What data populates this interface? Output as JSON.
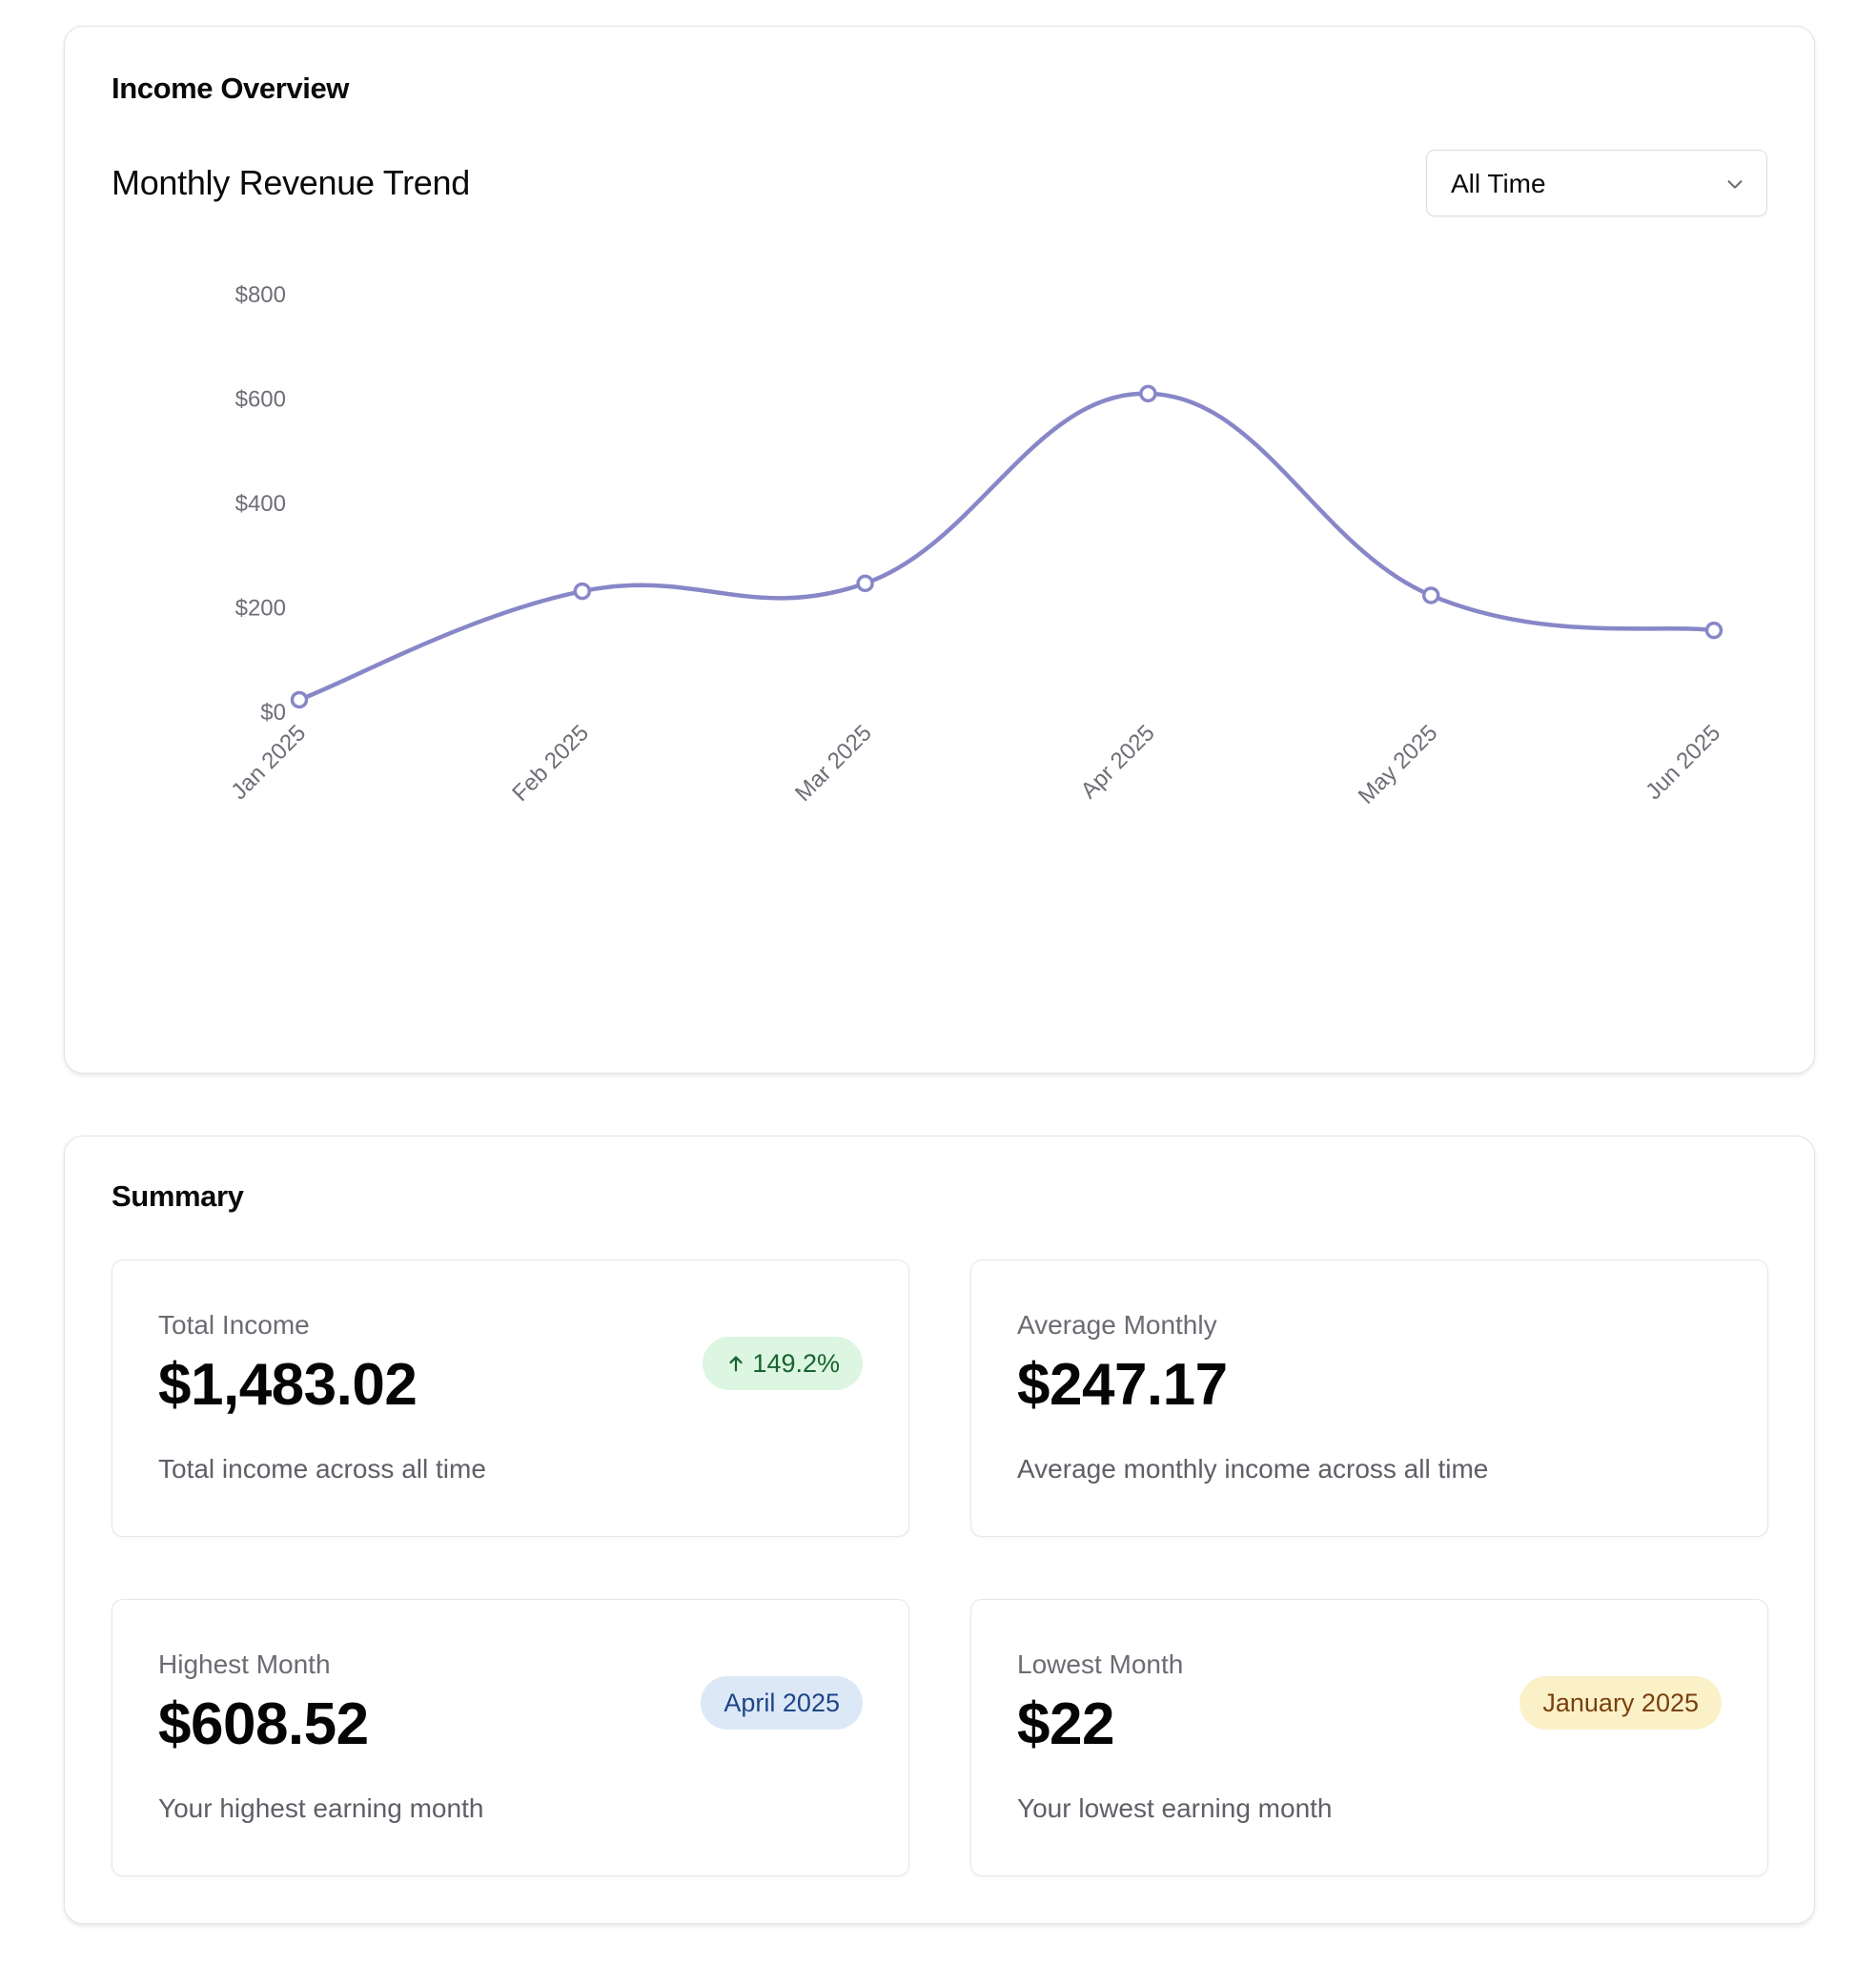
{
  "income_overview": {
    "title": "Income Overview",
    "chart_title": "Monthly Revenue Trend",
    "range_select": {
      "value": "All Time"
    }
  },
  "chart_data": {
    "type": "line",
    "title": "Monthly Revenue Trend",
    "xlabel": "",
    "ylabel": "",
    "categories": [
      "Jan 2025",
      "Feb 2025",
      "Mar 2025",
      "Apr 2025",
      "May 2025",
      "Jun 2025"
    ],
    "series": [
      {
        "values": [
          22,
          230,
          245,
          608.52,
          222,
          155
        ]
      }
    ],
    "y_ticks": [
      0,
      200,
      400,
      600,
      800
    ],
    "y_tick_labels": [
      "$0",
      "$200",
      "$400",
      "$600",
      "$800"
    ],
    "ylim": [
      0,
      800
    ],
    "grid": false,
    "smooth": true,
    "line_color": "#8787c8"
  },
  "summary": {
    "title": "Summary",
    "total_income": {
      "label": "Total Income",
      "value": "$1,483.02",
      "badge": "149.2%",
      "description": "Total income across all time"
    },
    "average_monthly": {
      "label": "Average Monthly",
      "value": "$247.17",
      "description": "Average monthly income across all time"
    },
    "highest_month": {
      "label": "Highest Month",
      "value": "$608.52",
      "badge": "April 2025",
      "description": "Your highest earning month"
    },
    "lowest_month": {
      "label": "Lowest Month",
      "value": "$22",
      "badge": "January 2025",
      "description": "Your lowest earning month"
    }
  },
  "colors": {
    "positive_badge_bg": "#dcf6e1",
    "positive_badge_text": "#17642f",
    "info_badge_bg": "#dde8f7",
    "info_badge_text": "#1d4587",
    "warning_badge_bg": "#fbf1c9",
    "warning_badge_text": "#7a3f0d"
  }
}
